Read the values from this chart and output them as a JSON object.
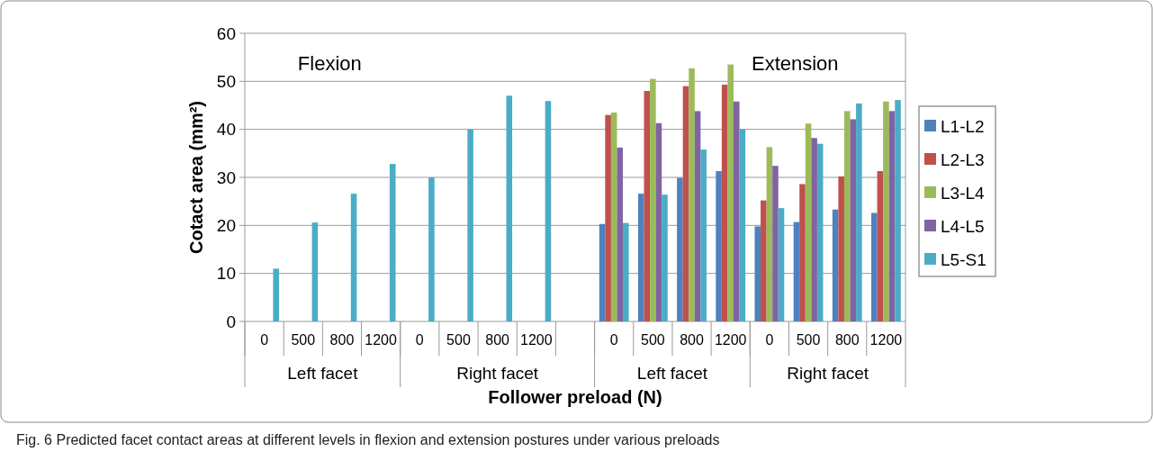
{
  "chart_data": {
    "type": "bar",
    "ylabel": "Cotact area (mm²)",
    "xlabel": "Follower preload (N)",
    "categories": [
      "0",
      "500",
      "800",
      "1200",
      "0",
      "500",
      "800",
      "1200",
      null,
      "0",
      "500",
      "800",
      "1200",
      "0",
      "500",
      "800",
      "1200"
    ],
    "series": [
      {
        "name": "L1-L2",
        "color": "#4f81bd",
        "values": [
          null,
          null,
          null,
          null,
          null,
          null,
          null,
          null,
          null,
          20.3,
          26.6,
          29.9,
          31.3,
          19.8,
          20.7,
          23.3,
          22.6
        ]
      },
      {
        "name": "L2-L3",
        "color": "#c0504d",
        "values": [
          null,
          null,
          null,
          null,
          null,
          null,
          null,
          null,
          null,
          43,
          48,
          49,
          49.3,
          25.2,
          28.6,
          30.2,
          31.3
        ]
      },
      {
        "name": "L3-L4",
        "color": "#9bbb59",
        "values": [
          null,
          null,
          null,
          null,
          null,
          null,
          null,
          null,
          null,
          43.5,
          50.5,
          52.7,
          53.5,
          36.3,
          41.2,
          43.8,
          45.8
        ]
      },
      {
        "name": "L4-L5",
        "color": "#8064a2",
        "values": [
          null,
          null,
          null,
          null,
          null,
          null,
          null,
          null,
          null,
          36.2,
          41.3,
          43.8,
          45.8,
          32.4,
          38.2,
          42.1,
          43.8
        ]
      },
      {
        "name": "L5-S1",
        "color": "#4bacc6",
        "values": [
          11,
          20.6,
          26.6,
          32.8,
          30,
          40,
          47,
          45.9,
          null,
          20.5,
          26.4,
          35.8,
          40,
          23.6,
          37,
          45.4,
          46.1
        ]
      }
    ],
    "ylim": [
      0,
      60
    ],
    "yticks": [
      0,
      10,
      20,
      30,
      40,
      50,
      60
    ],
    "grid": "y",
    "legend": "right",
    "annotations": [
      "Flexion",
      "Extension",
      "Left facet",
      "Right facet",
      "Left facet",
      "Right facet",
      "Fig. 6 Predicted facet contact areas at different levels in flexion and extension postures under various preloads"
    ]
  }
}
